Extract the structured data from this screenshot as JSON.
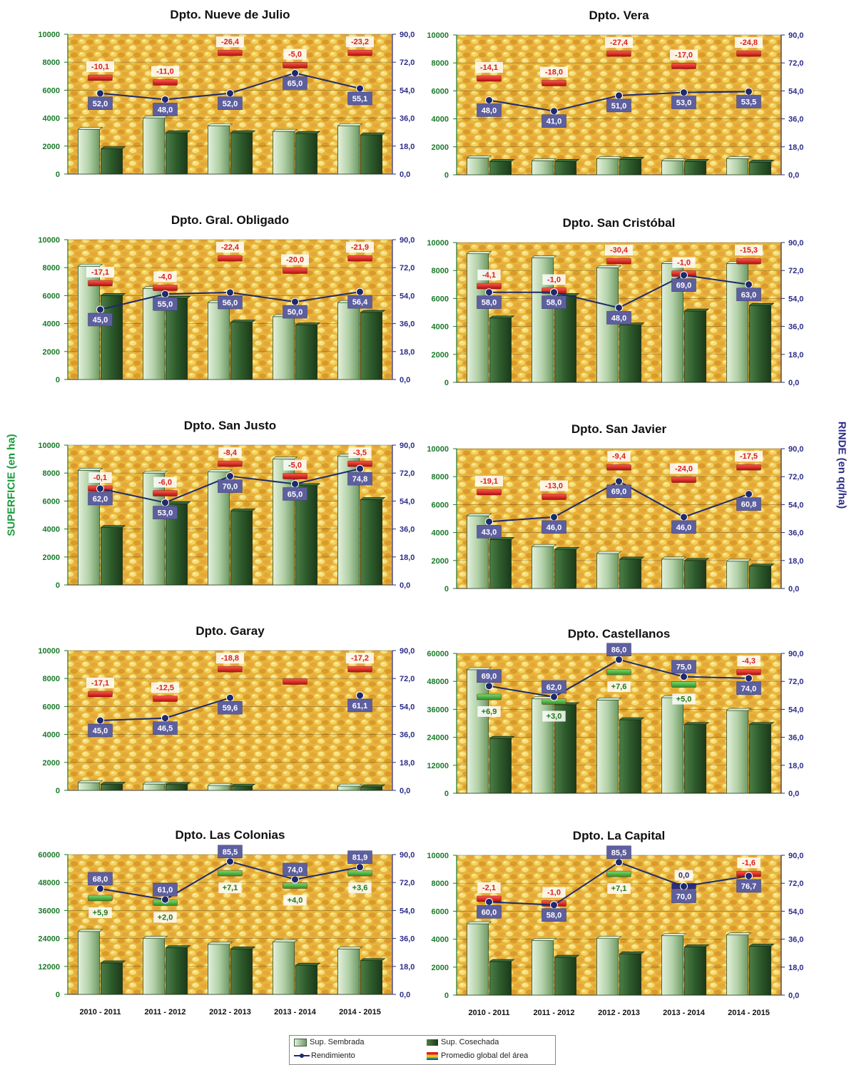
{
  "axis_titles": {
    "left": "SUPERFICIE (en ha)",
    "right": "RINDE (en qq/ha)"
  },
  "legend": {
    "sembrada": "Sup. Sembrada",
    "cosechada": "Sup. Cosechada",
    "rendimiento": "Rendimiento",
    "promedio": "Promedio global del área"
  },
  "colors": {
    "sembrada": "#b9d6b0",
    "cosechada": "#2f5a2c",
    "line": "#1e2a6a",
    "neg": "#d92020",
    "pos": "#3aaa3a",
    "yield_box": "#5d5f9e",
    "title": "#111111"
  },
  "chart_data": [
    {
      "type": "bar",
      "title": "Dpto. Nueve de Julio",
      "categories": [
        "2010 - 2011",
        "2011 - 2012",
        "2012 - 2013",
        "2013 - 2014",
        "2014 - 2015"
      ],
      "show_categories": false,
      "y_left": {
        "max": 10000,
        "ticks": [
          "0",
          "2000",
          "4000",
          "6000",
          "8000",
          "10000"
        ]
      },
      "y_right": {
        "max": 90,
        "ticks": [
          "0,0",
          "18,0",
          "36,0",
          "54,0",
          "72,0",
          "90,0"
        ]
      },
      "series": [
        {
          "name": "Sup. Sembrada",
          "values": [
            3200,
            4000,
            3450,
            3050,
            3450
          ]
        },
        {
          "name": "Sup. Cosechada",
          "values": [
            1800,
            2950,
            2950,
            2900,
            2800
          ]
        },
        {
          "name": "Rendimiento",
          "values": [
            52.0,
            48.0,
            52.0,
            65.0,
            55.1
          ]
        }
      ],
      "yield_labels": [
        "52,0",
        "48,0",
        "52,0",
        "65,0",
        "55,1"
      ],
      "promedio": [
        62.0,
        59.0,
        78.0,
        70.0,
        78.0
      ],
      "diff_labels": [
        "-10,1",
        "-11,0",
        "-26,4",
        "-5,0",
        "-23,2"
      ]
    },
    {
      "type": "bar",
      "title": "Dpto. Vera",
      "categories": [
        "2010 - 2011",
        "2011 - 2012",
        "2012 - 2013",
        "2013 - 2014",
        "2014 - 2015"
      ],
      "show_categories": false,
      "y_left": {
        "max": 10000,
        "ticks": [
          "0",
          "2000",
          "4000",
          "6000",
          "8000",
          "10000"
        ]
      },
      "y_right": {
        "max": 90,
        "ticks": [
          "0,0",
          "18,0",
          "36,0",
          "54,0",
          "72,0",
          "90,0"
        ]
      },
      "series": [
        {
          "name": "Sup. Sembrada",
          "values": [
            1200,
            1000,
            1150,
            1000,
            1150
          ]
        },
        {
          "name": "Sup. Cosechada",
          "values": [
            950,
            950,
            1100,
            950,
            900
          ]
        },
        {
          "name": "Rendimiento",
          "values": [
            48.0,
            41.0,
            51.0,
            53.0,
            53.5
          ]
        }
      ],
      "yield_labels": [
        "48,0",
        "41,0",
        "51,0",
        "53,0",
        "53,5"
      ],
      "promedio": [
        62.0,
        59.0,
        78.0,
        70.0,
        78.0
      ],
      "diff_labels": [
        "-14,1",
        "-18,0",
        "-27,4",
        "-17,0",
        "-24,8"
      ]
    },
    {
      "type": "bar",
      "title": "Dpto. Gral. Obligado",
      "categories": [
        "2010 - 2011",
        "2011 - 2012",
        "2012 - 2013",
        "2013 - 2014",
        "2014 - 2015"
      ],
      "show_categories": false,
      "y_left": {
        "max": 10000,
        "ticks": [
          "0",
          "2000",
          "4000",
          "6000",
          "8000",
          "10000"
        ]
      },
      "y_right": {
        "max": 90,
        "ticks": [
          "0,0",
          "18,0",
          "36,0",
          "54,0",
          "72,0",
          "90,0"
        ]
      },
      "series": [
        {
          "name": "Sup. Sembrada",
          "values": [
            8100,
            6500,
            5500,
            4500,
            5500
          ]
        },
        {
          "name": "Sup. Cosechada",
          "values": [
            6000,
            5800,
            4100,
            3900,
            4800
          ]
        },
        {
          "name": "Rendimiento",
          "values": [
            45.0,
            55.0,
            56.0,
            50.0,
            56.4
          ]
        }
      ],
      "yield_labels": [
        "45,0",
        "55,0",
        "56,0",
        "50,0",
        "56,4"
      ],
      "promedio": [
        62.0,
        59.0,
        78.0,
        70.0,
        78.0
      ],
      "diff_labels": [
        "-17,1",
        "-4,0",
        "-22,4",
        "-20,0",
        "-21,9"
      ]
    },
    {
      "type": "bar",
      "title": "Dpto. San Cristóbal",
      "categories": [
        "2010 - 2011",
        "2011 - 2012",
        "2012 - 2013",
        "2013 - 2014",
        "2014 - 2015"
      ],
      "show_categories": false,
      "y_left": {
        "max": 10000,
        "ticks": [
          "0",
          "2000",
          "4000",
          "6000",
          "8000",
          "10000"
        ]
      },
      "y_right": {
        "max": 90,
        "ticks": [
          "0,0",
          "18,0",
          "36,0",
          "54,0",
          "72,0",
          "90,0"
        ]
      },
      "series": [
        {
          "name": "Sup. Sembrada",
          "values": [
            9200,
            8900,
            8200,
            8500,
            8500
          ]
        },
        {
          "name": "Sup. Cosechada",
          "values": [
            4600,
            6200,
            4100,
            5100,
            5500
          ]
        },
        {
          "name": "Rendimiento",
          "values": [
            58.0,
            58.0,
            48.0,
            69.0,
            63.0
          ]
        }
      ],
      "yield_labels": [
        "58,0",
        "58,0",
        "48,0",
        "69,0",
        "63,0"
      ],
      "promedio": [
        62.0,
        59.0,
        78.0,
        70.0,
        78.0
      ],
      "diff_labels": [
        "-4,1",
        "-1,0",
        "-30,4",
        "-1,0",
        "-15,3"
      ]
    },
    {
      "type": "bar",
      "title": "Dpto. San Justo",
      "categories": [
        "2010 - 2011",
        "2011 - 2012",
        "2012 - 2013",
        "2013 - 2014",
        "2014 - 2015"
      ],
      "show_categories": false,
      "y_left": {
        "max": 10000,
        "ticks": [
          "0",
          "2000",
          "4000",
          "6000",
          "8000",
          "10000"
        ]
      },
      "y_right": {
        "max": 90,
        "ticks": [
          "0,0",
          "18,0",
          "36,0",
          "54,0",
          "72,0",
          "90,0"
        ]
      },
      "series": [
        {
          "name": "Sup. Sembrada",
          "values": [
            8200,
            8000,
            8100,
            9000,
            9200
          ]
        },
        {
          "name": "Sup. Cosechada",
          "values": [
            4100,
            5800,
            5300,
            7100,
            6100
          ]
        },
        {
          "name": "Rendimiento",
          "values": [
            62.0,
            53.0,
            70.0,
            65.0,
            74.8
          ]
        }
      ],
      "yield_labels": [
        "62,0",
        "53,0",
        "70,0",
        "65,0",
        "74,8"
      ],
      "promedio": [
        62.0,
        59.0,
        78.0,
        70.0,
        78.0
      ],
      "diff_labels": [
        "-0,1",
        "-6,0",
        "-8,4",
        "-5,0",
        "-3,5"
      ]
    },
    {
      "type": "bar",
      "title": "Dpto. San Javier",
      "categories": [
        "2010 - 2011",
        "2011 - 2012",
        "2012 - 2013",
        "2013 - 2014",
        "2014 - 2015"
      ],
      "show_categories": false,
      "y_left": {
        "max": 10000,
        "ticks": [
          "0",
          "2000",
          "4000",
          "6000",
          "8000",
          "10000"
        ]
      },
      "y_right": {
        "max": 90,
        "ticks": [
          "0,0",
          "18,0",
          "36,0",
          "54,0",
          "72,0",
          "90,0"
        ]
      },
      "series": [
        {
          "name": "Sup. Sembrada",
          "values": [
            5200,
            3000,
            2500,
            2100,
            1950
          ]
        },
        {
          "name": "Sup. Cosechada",
          "values": [
            3500,
            2800,
            2100,
            2000,
            1600
          ]
        },
        {
          "name": "Rendimiento",
          "values": [
            43.0,
            46.0,
            69.0,
            46.0,
            60.8
          ]
        }
      ],
      "yield_labels": [
        "43,0",
        "46,0",
        "69,0",
        "46,0",
        "60,8"
      ],
      "promedio": [
        62.0,
        59.0,
        78.0,
        70.0,
        78.0
      ],
      "diff_labels": [
        "-19,1",
        "-13,0",
        "-9,4",
        "-24,0",
        "-17,5"
      ]
    },
    {
      "type": "bar",
      "title": "Dpto. Garay",
      "categories": [
        "2010 - 2011",
        "2011 - 2012",
        "2012 - 2013",
        "2013 - 2014",
        "2014 - 2015"
      ],
      "show_categories": false,
      "y_left": {
        "max": 10000,
        "ticks": [
          "0",
          "2000",
          "4000",
          "6000",
          "8000",
          "10000"
        ]
      },
      "y_right": {
        "max": 90,
        "ticks": [
          "0,0",
          "18,0",
          "36,0",
          "54,0",
          "72,0",
          "90,0"
        ]
      },
      "series": [
        {
          "name": "Sup. Sembrada",
          "values": [
            550,
            450,
            350,
            0,
            300
          ]
        },
        {
          "name": "Sup. Cosechada",
          "values": [
            430,
            420,
            300,
            0,
            250
          ]
        },
        {
          "name": "Rendimiento",
          "values": [
            45.0,
            46.5,
            59.6,
            null,
            61.1
          ]
        }
      ],
      "yield_labels": [
        "45,0",
        "46,5",
        "59,6",
        "",
        "61,1"
      ],
      "promedio": [
        62.0,
        59.0,
        78.0,
        70.0,
        78.0
      ],
      "diff_labels": [
        "-17,1",
        "-12,5",
        "-18,8",
        "",
        "-17,2"
      ]
    },
    {
      "type": "bar",
      "title": "Dpto. Castellanos",
      "categories": [
        "2010 - 2011",
        "2011 - 2012",
        "2012 - 2013",
        "2013 - 2014",
        "2014 - 2015"
      ],
      "show_categories": false,
      "y_left": {
        "max": 60000,
        "ticks": [
          "0",
          "12000",
          "24000",
          "36000",
          "48000",
          "60000"
        ]
      },
      "y_right": {
        "max": 90,
        "ticks": [
          "0,0",
          "18,0",
          "36,0",
          "54,0",
          "72,0",
          "90,0"
        ]
      },
      "series": [
        {
          "name": "Sup. Sembrada",
          "values": [
            53000,
            40500,
            40000,
            41000,
            35500
          ]
        },
        {
          "name": "Sup. Cosechada",
          "values": [
            23500,
            38000,
            31500,
            29500,
            29500
          ]
        },
        {
          "name": "Rendimiento",
          "values": [
            69.0,
            62.0,
            86.0,
            75.0,
            74.0
          ]
        }
      ],
      "yield_labels": [
        "69,0",
        "62,0",
        "86,0",
        "75,0",
        "74,0"
      ],
      "promedio": [
        62.0,
        59.0,
        78.0,
        70.0,
        78.0
      ],
      "diff_labels": [
        "+6,9",
        "+3,0",
        "+7,6",
        "+5,0",
        "-4,3"
      ]
    },
    {
      "type": "bar",
      "title": "Dpto. Las Colonias",
      "categories": [
        "2010 - 2011",
        "2011 - 2012",
        "2012 - 2013",
        "2013 - 2014",
        "2014 - 2015"
      ],
      "show_categories": true,
      "y_left": {
        "max": 60000,
        "ticks": [
          "0",
          "12000",
          "24000",
          "36000",
          "48000",
          "60000"
        ]
      },
      "y_right": {
        "max": 90,
        "ticks": [
          "0,0",
          "18,0",
          "36,0",
          "54,0",
          "72,0",
          "90,0"
        ]
      },
      "series": [
        {
          "name": "Sup. Sembrada",
          "values": [
            27000,
            24000,
            21500,
            22500,
            19500
          ]
        },
        {
          "name": "Sup. Cosechada",
          "values": [
            13500,
            20000,
            19500,
            12500,
            14500
          ]
        },
        {
          "name": "Rendimiento",
          "values": [
            68.0,
            61.0,
            85.5,
            74.0,
            81.9
          ]
        }
      ],
      "yield_labels": [
        "68,0",
        "61,0",
        "85,5",
        "74,0",
        "81,9"
      ],
      "promedio": [
        62.0,
        59.0,
        78.0,
        70.0,
        78.0
      ],
      "diff_labels": [
        "+5,9",
        "+2,0",
        "+7,1",
        "+4,0",
        "+3,6"
      ]
    },
    {
      "type": "bar",
      "title": "Dpto. La Capital",
      "categories": [
        "2010 - 2011",
        "2011 - 2012",
        "2012 - 2013",
        "2013 - 2014",
        "2014 - 2015"
      ],
      "show_categories": true,
      "y_left": {
        "max": 10000,
        "ticks": [
          "0",
          "2000",
          "4000",
          "6000",
          "8000",
          "10000"
        ]
      },
      "y_right": {
        "max": 90,
        "ticks": [
          "0,0",
          "18,0",
          "36,0",
          "54,0",
          "72,0",
          "90,0"
        ]
      },
      "series": [
        {
          "name": "Sup. Sembrada",
          "values": [
            5100,
            3900,
            4050,
            4250,
            4300
          ]
        },
        {
          "name": "Sup. Cosechada",
          "values": [
            2400,
            2700,
            2950,
            3450,
            3500
          ]
        },
        {
          "name": "Rendimiento",
          "values": [
            60.0,
            58.0,
            85.5,
            70.0,
            76.7
          ]
        }
      ],
      "yield_labels": [
        "60,0",
        "58,0",
        "85,5",
        "70,0",
        "76,7"
      ],
      "promedio": [
        62.0,
        59.0,
        78.0,
        70.0,
        78.0
      ],
      "diff_labels": [
        "-2,1",
        "-1,0",
        "+7,1",
        "0,0",
        "-1,6"
      ]
    }
  ]
}
